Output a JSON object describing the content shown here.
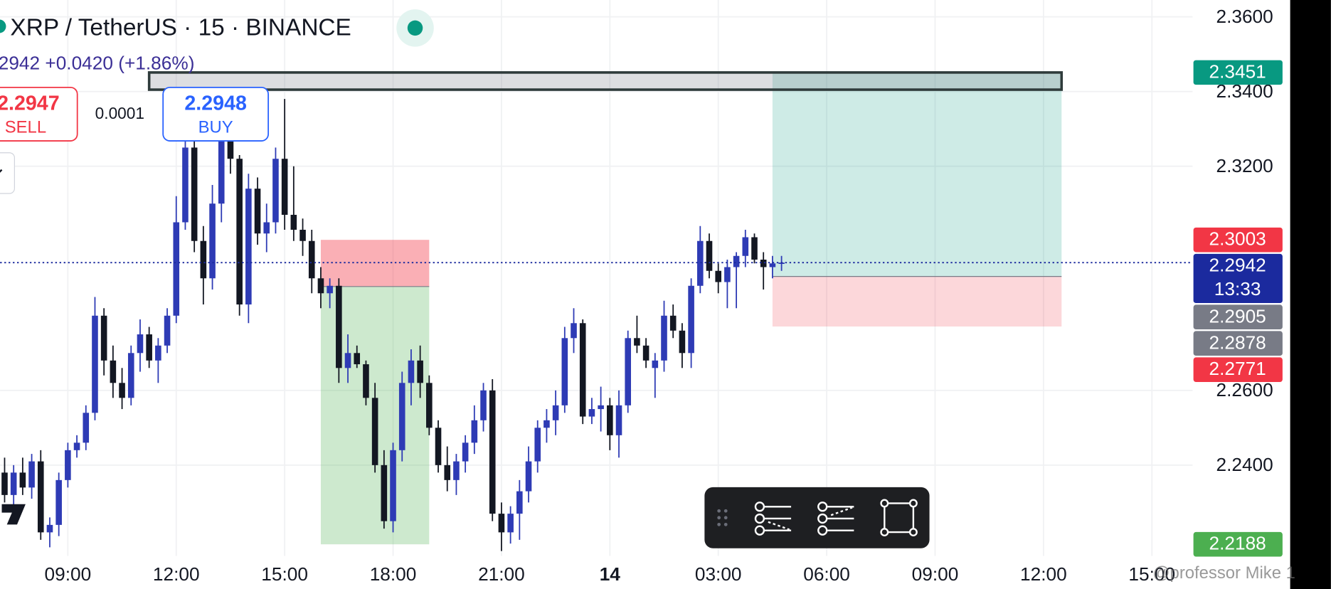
{
  "chart_data": {
    "type": "candlestick",
    "title": "XRP / TetherUS · 15 · BINANCE",
    "categories": [
      null,
      null,
      null,
      null,
      null,
      null,
      null,
      "09:00",
      null,
      null,
      null,
      null,
      null,
      null,
      null,
      null,
      null,
      null,
      null,
      "12:00",
      null,
      null,
      null,
      null,
      null,
      null,
      null,
      null,
      null,
      null,
      null,
      "15:00",
      null,
      null,
      null,
      null,
      null,
      null,
      null,
      null,
      null,
      null,
      null,
      "18:00",
      null,
      null,
      null,
      null,
      null,
      null,
      null,
      null,
      null,
      null,
      null,
      "21:00",
      null,
      null,
      null,
      null,
      null,
      null,
      null,
      null,
      null,
      null,
      null,
      "14",
      null,
      null,
      null,
      null,
      null,
      null,
      null,
      null,
      null,
      null,
      null,
      "03:00",
      null,
      null,
      null,
      null,
      null,
      null,
      null,
      null,
      null,
      null,
      null,
      "06:00",
      null,
      null,
      null,
      null,
      null,
      null,
      null,
      null,
      null,
      null,
      null,
      "09:00",
      null,
      null,
      null,
      null,
      null,
      null,
      null,
      null,
      null,
      null,
      null,
      "12:00",
      null,
      null,
      null,
      null,
      null,
      null,
      null,
      null,
      null,
      null,
      null,
      "15:00",
      null,
      null,
      null,
      null
    ],
    "open": [
      2.238,
      2.232,
      2.238,
      2.234,
      2.241,
      2.222,
      2.224,
      2.236,
      2.244,
      2.246,
      2.254,
      2.28,
      2.268,
      2.262,
      2.258,
      2.27,
      2.275,
      2.268,
      2.272,
      2.28,
      2.305,
      2.325,
      2.3,
      2.29,
      2.31,
      2.33,
      2.322,
      2.283,
      2.314,
      2.302,
      2.305,
      2.322,
      2.307,
      2.303,
      2.3,
      2.29,
      2.286,
      2.288,
      2.266,
      2.27,
      2.267,
      2.258,
      2.24,
      2.225,
      2.244,
      2.262,
      2.268,
      2.262,
      2.25,
      2.24,
      2.236,
      2.241,
      2.246,
      2.252,
      2.26,
      2.227,
      2.222,
      2.227,
      2.233,
      2.241,
      2.25,
      2.252,
      2.256,
      2.274,
      2.278,
      2.253,
      2.255,
      2.256,
      2.248,
      2.256,
      2.274,
      2.272,
      2.266,
      2.268,
      2.28,
      2.276,
      2.27,
      2.288,
      2.3,
      2.292,
      2.289,
      2.293,
      2.296,
      2.301,
      2.295,
      2.293,
      2.294,
      null,
      null,
      null,
      null,
      null,
      null,
      null,
      null,
      null,
      null,
      null,
      null,
      null,
      null,
      null,
      null,
      null,
      null,
      null,
      null,
      null,
      null,
      null,
      null,
      null,
      null,
      null,
      null,
      null,
      null,
      null,
      null,
      null,
      null,
      null,
      null,
      null,
      null,
      null,
      null,
      null,
      null,
      null,
      null,
      null
    ],
    "high": [
      2.242,
      2.24,
      2.242,
      2.243,
      2.244,
      2.226,
      2.238,
      2.246,
      2.248,
      2.256,
      2.285,
      2.282,
      2.272,
      2.266,
      2.272,
      2.279,
      2.277,
      2.274,
      2.282,
      2.312,
      2.33,
      2.327,
      2.304,
      2.315,
      2.336,
      2.334,
      2.323,
      2.318,
      2.317,
      2.31,
      2.325,
      2.338,
      2.32,
      2.306,
      2.303,
      2.293,
      2.29,
      2.29,
      2.275,
      2.272,
      2.268,
      2.262,
      2.244,
      2.246,
      2.265,
      2.271,
      2.272,
      2.264,
      2.252,
      2.245,
      2.243,
      2.248,
      2.256,
      2.262,
      2.263,
      2.23,
      2.229,
      2.236,
      2.245,
      2.252,
      2.255,
      2.26,
      2.277,
      2.282,
      2.279,
      2.258,
      2.261,
      2.258,
      2.26,
      2.276,
      2.28,
      2.274,
      2.27,
      2.284,
      2.283,
      2.278,
      2.29,
      2.304,
      2.302,
      2.294,
      2.295,
      2.297,
      2.303,
      2.302,
      2.297,
      2.296,
      2.296,
      null,
      null,
      null,
      null,
      null,
      null,
      null,
      null,
      null,
      null,
      null,
      null,
      null,
      null,
      null,
      null,
      null,
      null,
      null,
      null,
      null,
      null,
      null,
      null,
      null,
      null,
      null,
      null,
      null,
      null,
      null,
      null,
      null,
      null,
      null,
      null,
      null,
      null,
      null,
      null,
      null,
      null,
      null,
      null,
      null
    ],
    "low": [
      2.23,
      2.228,
      2.232,
      2.231,
      2.22,
      2.218,
      2.221,
      2.234,
      2.242,
      2.244,
      2.252,
      2.264,
      2.258,
      2.255,
      2.256,
      2.265,
      2.266,
      2.262,
      2.27,
      2.278,
      2.303,
      2.297,
      2.283,
      2.287,
      2.305,
      2.318,
      2.28,
      2.278,
      2.299,
      2.297,
      2.302,
      2.303,
      2.3,
      2.296,
      2.286,
      2.282,
      2.282,
      2.262,
      2.262,
      2.266,
      2.256,
      2.238,
      2.223,
      2.222,
      2.241,
      2.256,
      2.258,
      2.248,
      2.238,
      2.233,
      2.232,
      2.238,
      2.243,
      2.249,
      2.225,
      2.217,
      2.219,
      2.22,
      2.23,
      2.238,
      2.246,
      2.248,
      2.254,
      2.27,
      2.251,
      2.251,
      2.249,
      2.244,
      2.242,
      2.254,
      2.27,
      2.266,
      2.258,
      2.265,
      2.274,
      2.266,
      2.266,
      2.286,
      2.29,
      2.286,
      2.282,
      2.282,
      2.293,
      2.294,
      2.287,
      2.29,
      2.292,
      null,
      null,
      null,
      null,
      null,
      null,
      null,
      null,
      null,
      null,
      null,
      null,
      null,
      null,
      null,
      null,
      null,
      null,
      null,
      null,
      null,
      null,
      null,
      null,
      null,
      null,
      null,
      null,
      null,
      null,
      null,
      null,
      null,
      null,
      null,
      null,
      null,
      null,
      null,
      null,
      null,
      null,
      null,
      null,
      null
    ],
    "close": [
      2.232,
      2.238,
      2.234,
      2.241,
      2.222,
      2.224,
      2.236,
      2.244,
      2.246,
      2.254,
      2.28,
      2.268,
      2.262,
      2.258,
      2.27,
      2.275,
      2.268,
      2.272,
      2.28,
      2.305,
      2.325,
      2.3,
      2.29,
      2.31,
      2.33,
      2.322,
      2.283,
      2.314,
      2.302,
      2.305,
      2.322,
      2.307,
      2.303,
      2.3,
      2.29,
      2.286,
      2.288,
      2.266,
      2.27,
      2.267,
      2.258,
      2.24,
      2.225,
      2.244,
      2.262,
      2.268,
      2.262,
      2.25,
      2.24,
      2.236,
      2.241,
      2.246,
      2.252,
      2.26,
      2.227,
      2.222,
      2.227,
      2.233,
      2.241,
      2.25,
      2.252,
      2.256,
      2.274,
      2.278,
      2.253,
      2.255,
      2.256,
      2.248,
      2.256,
      2.274,
      2.272,
      2.268,
      2.268,
      2.28,
      2.276,
      2.27,
      2.288,
      2.3,
      2.292,
      2.289,
      2.293,
      2.296,
      2.301,
      2.295,
      2.293,
      2.294,
      2.2942,
      null,
      null,
      null,
      null,
      null,
      null,
      null,
      null,
      null,
      null,
      null,
      null,
      null,
      null,
      null,
      null,
      null,
      null,
      null,
      null,
      null,
      null,
      null,
      null,
      null,
      null,
      null,
      null,
      null,
      null,
      null,
      null,
      null,
      null,
      null,
      null,
      null,
      null,
      null,
      null,
      null,
      null,
      null,
      null,
      null
    ],
    "up_color": "#2e3bb5",
    "down_color": "#131722",
    "ylim": [
      2.2157,
      2.3645
    ],
    "yticks": [
      {
        "value": 2.36,
        "label": "2.3600"
      },
      {
        "value": 2.34,
        "label": "2.3400"
      },
      {
        "value": 2.32,
        "label": "2.3200"
      },
      {
        "value": 2.26,
        "label": "2.2600"
      },
      {
        "value": 2.24,
        "label": "2.2400"
      }
    ],
    "grid": true,
    "price_labels": [
      {
        "value": 2.3451,
        "color": "#089981"
      },
      {
        "value": 2.3003,
        "color": "#f23645"
      },
      {
        "value": 2.2942,
        "color": "#1b2a9e",
        "countdown": "13:33"
      },
      {
        "value": 2.2905,
        "color": "#787b86"
      },
      {
        "value": 2.2878,
        "color": "#787b86"
      },
      {
        "value": 2.2771,
        "color": "#f23645"
      },
      {
        "value": 2.2188,
        "color": "#4caf50"
      }
    ],
    "positions": [
      {
        "from": 35,
        "to": 47,
        "entry": 2.2878,
        "stop": 2.3003,
        "target": 2.2188
      },
      {
        "from": 85,
        "to": 117,
        "entry": 2.2905,
        "stop": 2.2771,
        "target": 2.3451
      }
    ],
    "rectangle": {
      "from": 16,
      "to": 117,
      "top": 2.3451,
      "bottom": 2.3405
    }
  },
  "header": {
    "quote": "2942  +0.0420 (+1.86%)"
  },
  "order_buttons": {
    "sell_price": "2.2947",
    "sell": "SELL",
    "spread": "0.0001",
    "buy_price": "2.2948",
    "buy": "BUY"
  },
  "watermark": "@professor Mike 1"
}
